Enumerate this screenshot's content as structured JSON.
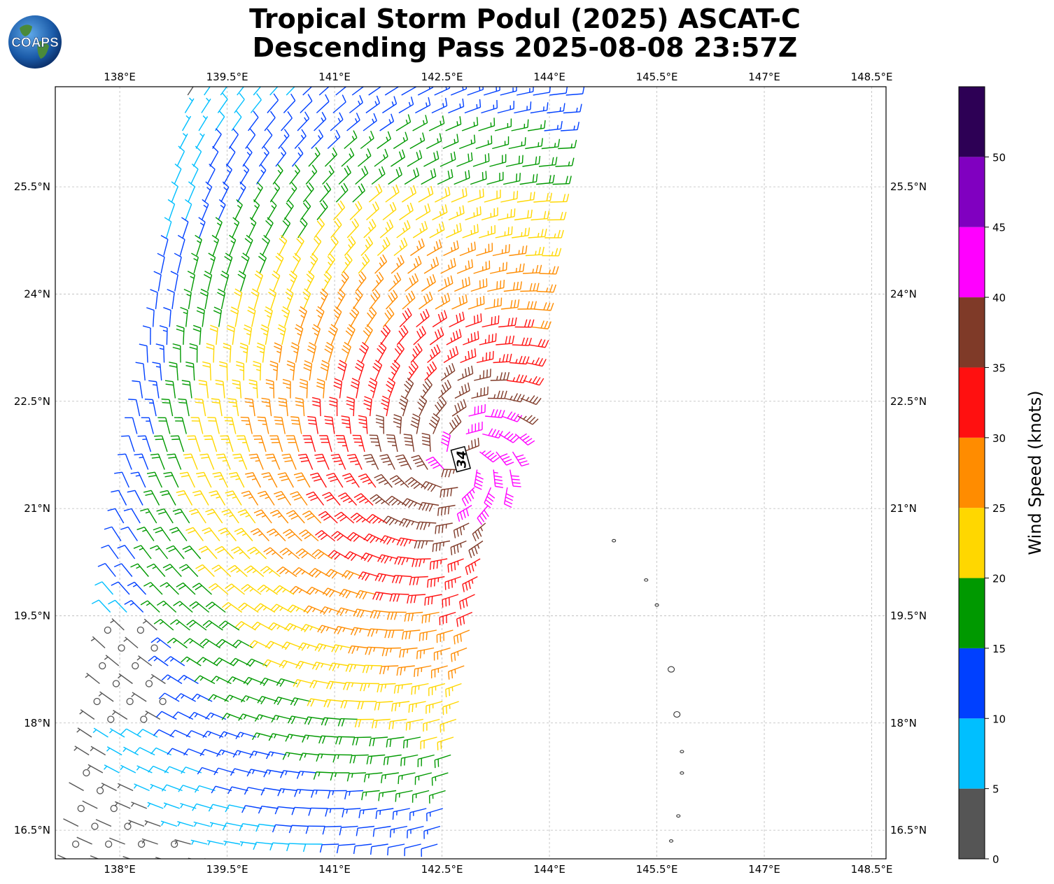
{
  "title": {
    "line1": "Tropical Storm Podul (2025) ASCAT-C",
    "line2": "Descending Pass 2025-08-08 23:57Z"
  },
  "logo": {
    "text": "COAPS",
    "icon": "globe-icon"
  },
  "axes": {
    "lon_ticks": [
      "138°E",
      "139.5°E",
      "141°E",
      "142.5°E",
      "144°E",
      "145.5°E",
      "147°E",
      "148.5°E"
    ],
    "lat_ticks": [
      "25.5°N",
      "24°N",
      "22.5°N",
      "21°N",
      "19.5°N",
      "18°N",
      "16.5°N"
    ],
    "lon_range": [
      137.1,
      148.7
    ],
    "lat_range": [
      16.1,
      26.9
    ]
  },
  "storm_marker": {
    "label": "34"
  },
  "colorbar": {
    "label": "Wind Speed (knots)",
    "ticks": [
      "0",
      "5",
      "10",
      "15",
      "20",
      "25",
      "30",
      "35",
      "40",
      "45",
      "50"
    ],
    "bins": [
      {
        "range": [
          0,
          5
        ],
        "color": "#555555"
      },
      {
        "range": [
          5,
          10
        ],
        "color": "#00bfff"
      },
      {
        "range": [
          10,
          15
        ],
        "color": "#0040ff"
      },
      {
        "range": [
          15,
          20
        ],
        "color": "#009900"
      },
      {
        "range": [
          20,
          25
        ],
        "color": "#ffd700"
      },
      {
        "range": [
          25,
          30
        ],
        "color": "#ff8c00"
      },
      {
        "range": [
          30,
          35
        ],
        "color": "#ff1010"
      },
      {
        "range": [
          35,
          40
        ],
        "color": "#7f3a28"
      },
      {
        "range": [
          40,
          45
        ],
        "color": "#ff00ff"
      },
      {
        "range": [
          45,
          50
        ],
        "color": "#8000c0"
      },
      {
        "range": [
          50,
          55
        ],
        "color": "#2d0055"
      }
    ]
  },
  "swath": {
    "center_lon": 142.8,
    "center_lat": 21.65,
    "east_edge_at_top_lon": 144.4,
    "east_edge_at_bottom_lon": 142.5
  },
  "islands": [
    {
      "lon": 144.9,
      "lat": 20.55
    },
    {
      "lon": 145.35,
      "lat": 20.0
    },
    {
      "lon": 145.5,
      "lat": 19.65
    },
    {
      "lon": 145.7,
      "lat": 18.75
    },
    {
      "lon": 145.78,
      "lat": 18.12
    },
    {
      "lon": 145.85,
      "lat": 17.6
    },
    {
      "lon": 145.85,
      "lat": 17.3
    },
    {
      "lon": 145.8,
      "lat": 16.7
    },
    {
      "lon": 145.7,
      "lat": 16.35
    }
  ]
}
